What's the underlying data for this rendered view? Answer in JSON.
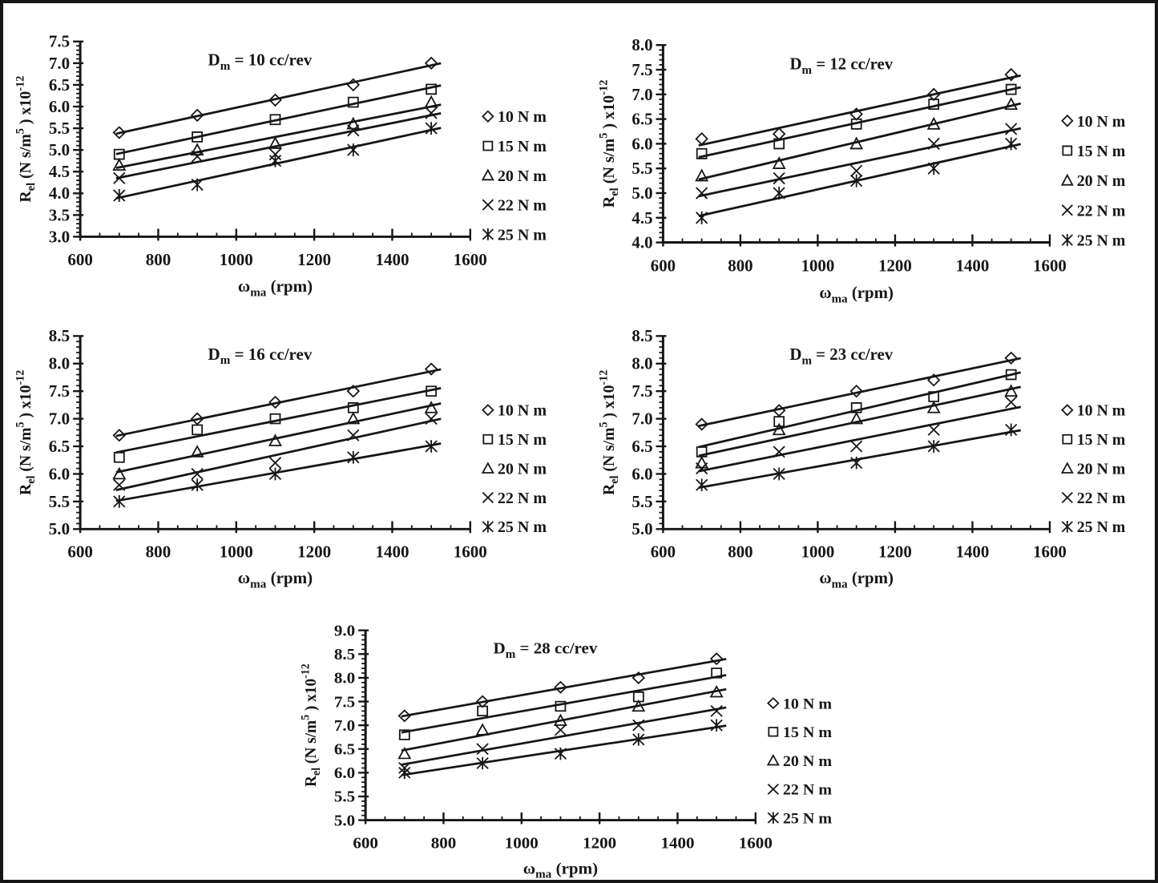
{
  "figure": {
    "background": "#ffffff",
    "border_color": "#161616",
    "ink_color": "#161616"
  },
  "axes_text": {
    "xlabel": "ωma (rpm)",
    "xlabel_parts": [
      {
        "t": "ω"
      },
      {
        "t": "ma",
        "s": "sub"
      },
      {
        "t": " (rpm)"
      }
    ],
    "ylabel": "Rel (N s/m5 ) x10-12",
    "ylabel_parts": [
      {
        "t": "R"
      },
      {
        "t": "el",
        "s": "sub"
      },
      {
        "t": " (N s/m"
      },
      {
        "t": "5",
        "s": "sup"
      },
      {
        "t": " ) x10"
      },
      {
        "t": "-12",
        "s": "sup"
      }
    ]
  },
  "legend_entries": [
    {
      "marker": "diamond",
      "label": "10 N m"
    },
    {
      "marker": "square",
      "label": "15 N m"
    },
    {
      "marker": "triangle",
      "label": "20 N m"
    },
    {
      "marker": "x",
      "label": "22 N m"
    },
    {
      "marker": "asterisk",
      "label": "25 N m"
    }
  ],
  "chart_data": [
    {
      "type": "scatter",
      "title": "Dm = 10 cc/rev",
      "title_parts": [
        {
          "t": "D"
        },
        {
          "t": "m",
          "s": "sub"
        },
        {
          "t": " = 10 cc/rev"
        }
      ],
      "xlabel": "ωma (rpm)",
      "ylabel": "Rel (N s/m5 ) x10-12",
      "x": [
        700,
        900,
        1100,
        1300,
        1500
      ],
      "xlim": [
        600,
        1600
      ],
      "xticks": [
        600,
        800,
        1000,
        1200,
        1400,
        1600
      ],
      "x_minor_step": 50,
      "ylim": [
        3.0,
        7.5
      ],
      "yticks": [
        3.0,
        3.5,
        4.0,
        4.5,
        5.0,
        5.5,
        6.0,
        6.5,
        7.0,
        7.5
      ],
      "y_minor_step": 0.1,
      "grid": false,
      "trendlines": "linear",
      "legend_position": "right",
      "series": [
        {
          "name": "10 N m",
          "marker": "diamond",
          "values": [
            5.4,
            5.8,
            6.15,
            6.5,
            7.0
          ]
        },
        {
          "name": "15 N m",
          "marker": "square",
          "values": [
            4.9,
            5.3,
            5.7,
            6.1,
            6.4
          ]
        },
        {
          "name": "20 N m",
          "marker": "triangle",
          "values": [
            4.65,
            5.0,
            5.15,
            5.6,
            6.1
          ]
        },
        {
          "name": "22 N m",
          "marker": "x",
          "values": [
            4.35,
            4.85,
            4.9,
            5.45,
            5.85
          ]
        },
        {
          "name": "25 N m",
          "marker": "asterisk",
          "values": [
            3.95,
            4.2,
            4.75,
            5.0,
            5.5
          ]
        }
      ]
    },
    {
      "type": "scatter",
      "title": "Dm = 12 cc/rev",
      "title_parts": [
        {
          "t": "D"
        },
        {
          "t": "m",
          "s": "sub"
        },
        {
          "t": " = 12 cc/rev"
        }
      ],
      "xlabel": "ωma (rpm)",
      "ylabel": "Rel (N s/m5 ) x10-12",
      "x": [
        700,
        900,
        1100,
        1300,
        1500
      ],
      "xlim": [
        600,
        1600
      ],
      "xticks": [
        600,
        800,
        1000,
        1200,
        1400,
        1600
      ],
      "x_minor_step": 50,
      "ylim": [
        4.0,
        8.0
      ],
      "yticks": [
        4.0,
        4.5,
        5.0,
        5.5,
        6.0,
        6.5,
        7.0,
        7.5,
        8.0
      ],
      "y_minor_step": 0.1,
      "grid": false,
      "trendlines": "linear",
      "legend_position": "right",
      "series": [
        {
          "name": "10 N m",
          "marker": "diamond",
          "values": [
            6.1,
            6.2,
            6.6,
            7.0,
            7.4
          ]
        },
        {
          "name": "15 N m",
          "marker": "square",
          "values": [
            5.8,
            6.0,
            6.4,
            6.8,
            7.1
          ]
        },
        {
          "name": "20 N m",
          "marker": "triangle",
          "values": [
            5.35,
            5.6,
            6.0,
            6.4,
            6.8
          ]
        },
        {
          "name": "22 N m",
          "marker": "x",
          "values": [
            5.0,
            5.3,
            5.45,
            6.0,
            6.3
          ]
        },
        {
          "name": "25 N m",
          "marker": "asterisk",
          "values": [
            4.5,
            5.0,
            5.25,
            5.5,
            6.0
          ]
        }
      ]
    },
    {
      "type": "scatter",
      "title": "Dm = 16 cc/rev",
      "title_parts": [
        {
          "t": "D"
        },
        {
          "t": "m",
          "s": "sub"
        },
        {
          "t": " = 16 cc/rev"
        }
      ],
      "xlabel": "ωma (rpm)",
      "ylabel": "Rel (N s/m5 ) x10-12",
      "x": [
        700,
        900,
        1100,
        1300,
        1500
      ],
      "xlim": [
        600,
        1600
      ],
      "xticks": [
        600,
        800,
        1000,
        1200,
        1400,
        1600
      ],
      "x_minor_step": 50,
      "ylim": [
        5.0,
        8.5
      ],
      "yticks": [
        5.0,
        5.5,
        6.0,
        6.5,
        7.0,
        7.5,
        8.0,
        8.5
      ],
      "y_minor_step": 0.1,
      "grid": false,
      "trendlines": "linear",
      "legend_position": "right",
      "series": [
        {
          "name": "10 N m",
          "marker": "diamond",
          "values": [
            6.7,
            7.0,
            7.3,
            7.5,
            7.9
          ]
        },
        {
          "name": "15 N m",
          "marker": "square",
          "values": [
            6.3,
            6.8,
            7.0,
            7.2,
            7.5
          ]
        },
        {
          "name": "20 N m",
          "marker": "triangle",
          "values": [
            6.0,
            6.4,
            6.6,
            7.0,
            7.2
          ]
        },
        {
          "name": "22 N m",
          "marker": "x",
          "values": [
            5.8,
            6.0,
            6.2,
            6.7,
            7.0
          ]
        },
        {
          "name": "25 N m",
          "marker": "asterisk",
          "values": [
            5.5,
            5.8,
            6.0,
            6.3,
            6.5
          ]
        }
      ]
    },
    {
      "type": "scatter",
      "title": "Dm = 23 cc/rev",
      "title_parts": [
        {
          "t": "D"
        },
        {
          "t": "m",
          "s": "sub"
        },
        {
          "t": " = 23 cc/rev"
        }
      ],
      "xlabel": "ωma (rpm)",
      "ylabel": "Rel (N s/m5 ) x10-12",
      "x": [
        700,
        900,
        1100,
        1300,
        1500
      ],
      "xlim": [
        600,
        1600
      ],
      "xticks": [
        600,
        800,
        1000,
        1200,
        1400,
        1600
      ],
      "x_minor_step": 50,
      "ylim": [
        5.0,
        8.5
      ],
      "yticks": [
        5.0,
        5.5,
        6.0,
        6.5,
        7.0,
        7.5,
        8.0,
        8.5
      ],
      "y_minor_step": 0.1,
      "grid": false,
      "trendlines": "linear",
      "legend_position": "right",
      "series": [
        {
          "name": "10 N m",
          "marker": "diamond",
          "values": [
            6.9,
            7.15,
            7.5,
            7.7,
            8.1
          ]
        },
        {
          "name": "15 N m",
          "marker": "square",
          "values": [
            6.4,
            6.95,
            7.2,
            7.4,
            7.8
          ]
        },
        {
          "name": "20 N m",
          "marker": "triangle",
          "values": [
            6.2,
            6.8,
            7.0,
            7.2,
            7.5
          ]
        },
        {
          "name": "22 N m",
          "marker": "x",
          "values": [
            6.1,
            6.4,
            6.5,
            6.8,
            7.3
          ]
        },
        {
          "name": "25 N m",
          "marker": "asterisk",
          "values": [
            5.8,
            6.0,
            6.2,
            6.5,
            6.8
          ]
        }
      ]
    },
    {
      "type": "scatter",
      "title": "Dm = 28 cc/rev",
      "title_parts": [
        {
          "t": "D"
        },
        {
          "t": "m",
          "s": "sub"
        },
        {
          "t": " = 28 cc/rev"
        }
      ],
      "xlabel": "ωma (rpm)",
      "ylabel": "Rel (N s/m5 ) x10-12",
      "x": [
        700,
        900,
        1100,
        1300,
        1500
      ],
      "xlim": [
        600,
        1600
      ],
      "xticks": [
        600,
        800,
        1000,
        1200,
        1400,
        1600
      ],
      "x_minor_step": 50,
      "ylim": [
        5.0,
        9.0
      ],
      "yticks": [
        5.0,
        5.5,
        6.0,
        6.5,
        7.0,
        7.5,
        8.0,
        8.5,
        9.0
      ],
      "y_minor_step": 0.1,
      "grid": false,
      "trendlines": "linear",
      "legend_position": "right",
      "series": [
        {
          "name": "10 N m",
          "marker": "diamond",
          "values": [
            7.2,
            7.5,
            7.8,
            8.0,
            8.4
          ]
        },
        {
          "name": "15 N m",
          "marker": "square",
          "values": [
            6.8,
            7.3,
            7.4,
            7.6,
            8.1
          ]
        },
        {
          "name": "20 N m",
          "marker": "triangle",
          "values": [
            6.4,
            6.9,
            7.1,
            7.4,
            7.7
          ]
        },
        {
          "name": "22 N m",
          "marker": "x",
          "values": [
            6.1,
            6.5,
            6.9,
            7.0,
            7.3
          ]
        },
        {
          "name": "25 N m",
          "marker": "asterisk",
          "values": [
            6.0,
            6.2,
            6.4,
            6.7,
            7.0
          ]
        }
      ]
    }
  ]
}
